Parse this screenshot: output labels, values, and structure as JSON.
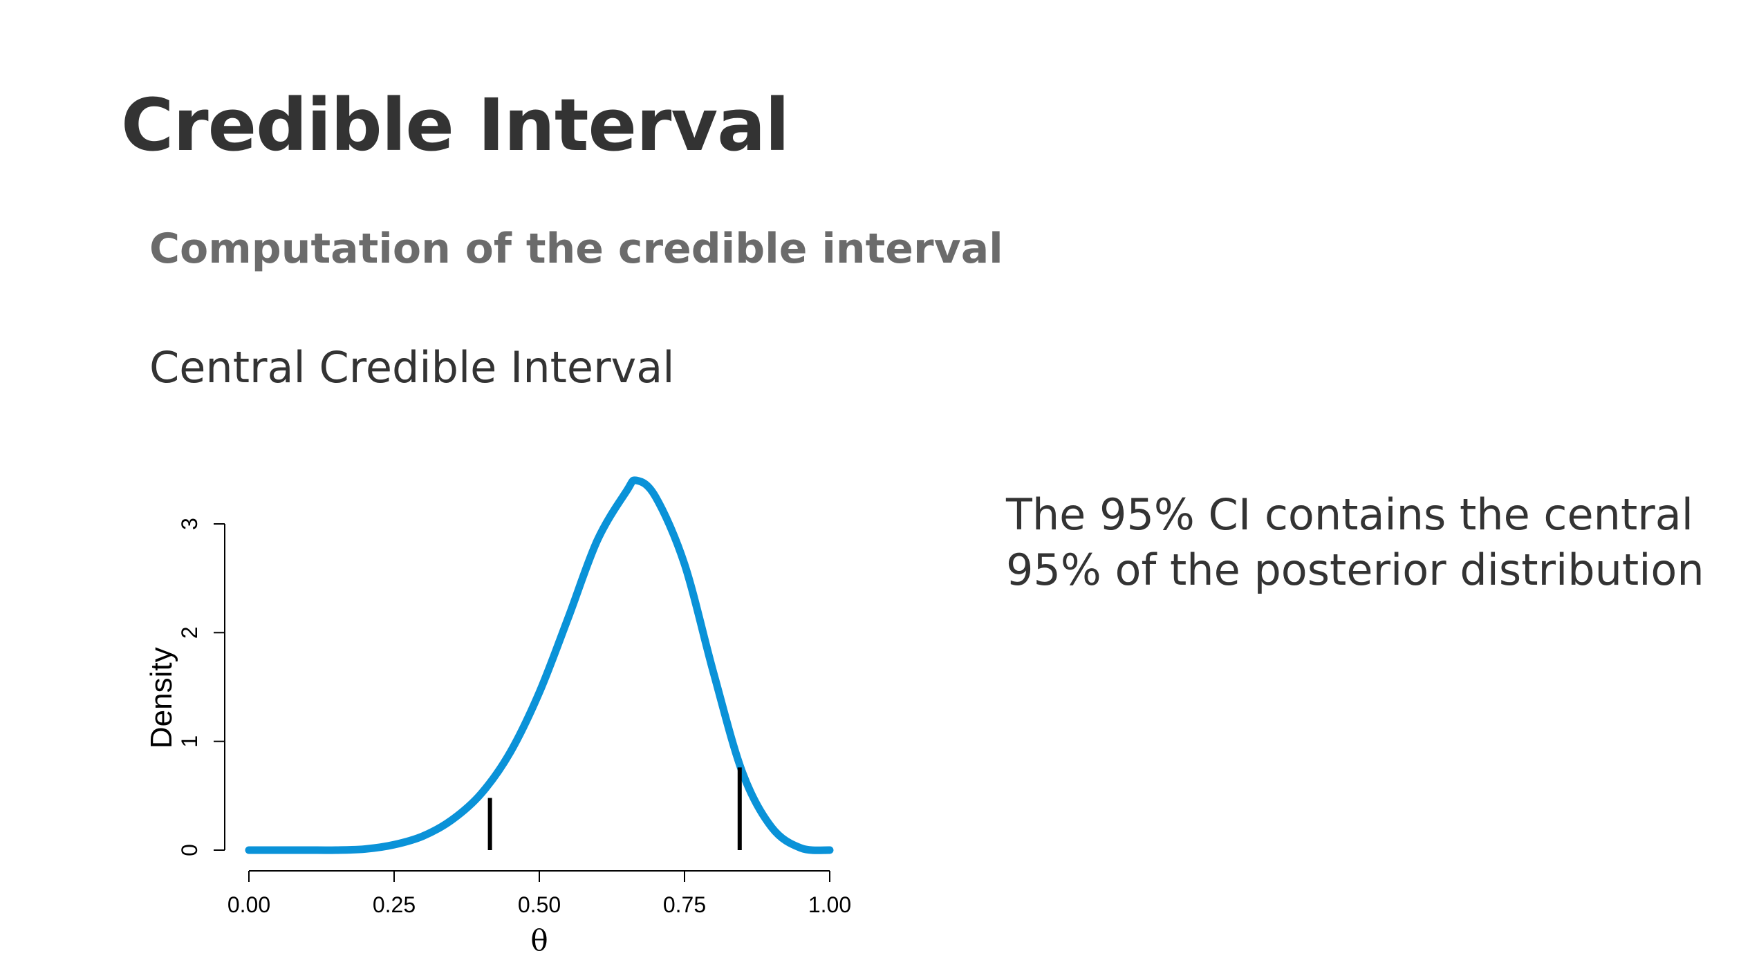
{
  "slide": {
    "title": "Credible Interval",
    "subtitle": "Computation of the credible interval",
    "section": "Central Credible Interval",
    "description": [
      "The 95% CI contains the central",
      "95% of the posterior distribution"
    ]
  },
  "chart_data": {
    "type": "line",
    "xlabel": "θ",
    "ylabel": "Density",
    "xlim": [
      0,
      1
    ],
    "ylim": [
      0,
      3
    ],
    "x_ticks": [
      0,
      0.25,
      0.5,
      0.75,
      1
    ],
    "x_tick_labels": [
      "0.00",
      "0.25",
      "0.50",
      "0.75",
      "1.00"
    ],
    "y_ticks": [
      0,
      1,
      2,
      3
    ],
    "y_tick_labels": [
      "0",
      "1",
      "2",
      "3"
    ],
    "grid": false,
    "series": [
      {
        "color": "#0a92d8",
        "x": [
          0.0,
          0.05,
          0.1,
          0.15,
          0.2,
          0.25,
          0.3,
          0.35,
          0.4,
          0.45,
          0.5,
          0.55,
          0.6,
          0.65,
          0.667,
          0.7,
          0.75,
          0.8,
          0.85,
          0.9,
          0.95,
          1.0
        ],
        "y": [
          0.0,
          0.0,
          0.0,
          0.0,
          0.01,
          0.05,
          0.13,
          0.28,
          0.52,
          0.9,
          1.45,
          2.14,
          2.85,
          3.3,
          3.4,
          3.25,
          2.63,
          1.63,
          0.71,
          0.21,
          0.02,
          0.0
        ]
      }
    ],
    "interval": {
      "color": "#000000",
      "lower": {
        "x": 0.415,
        "y": 0.48
      },
      "upper": {
        "x": 0.845,
        "y": 0.76
      }
    }
  }
}
